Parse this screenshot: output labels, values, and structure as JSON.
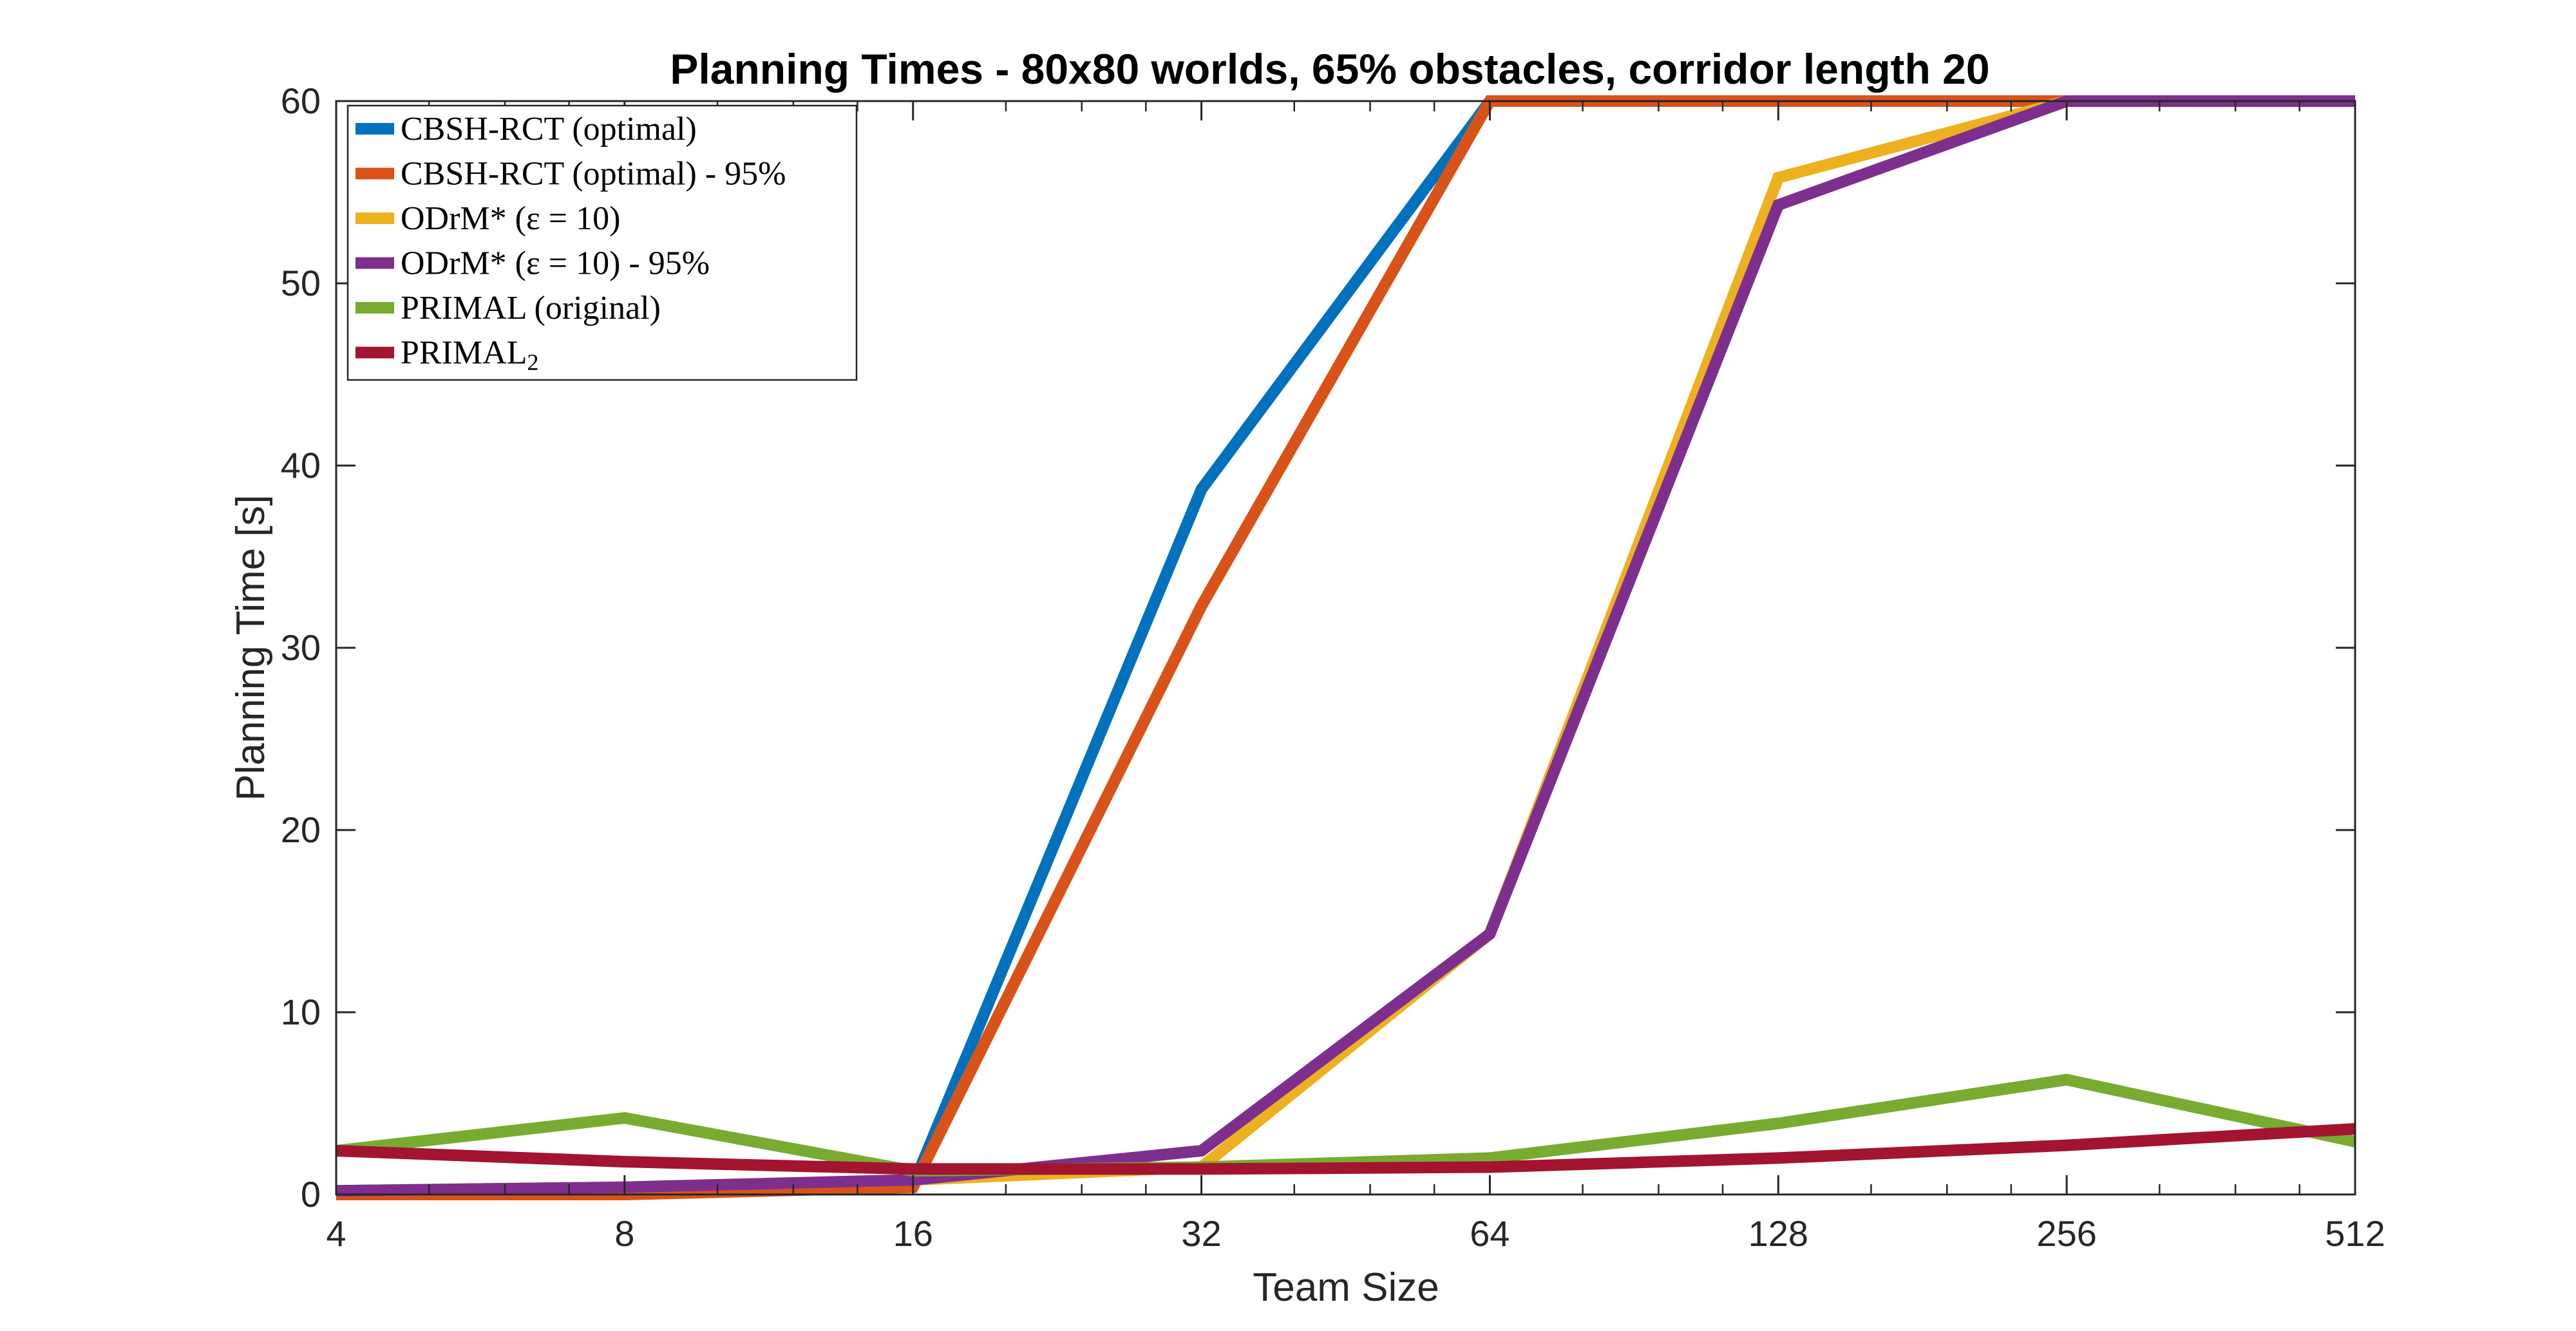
{
  "chart_data": {
    "type": "line",
    "title": "Planning Times - 80x80 worlds, 65% obstacles, corridor length 20",
    "xlabel": "Team Size",
    "ylabel": "Planning Time [s]",
    "x_scale": "log2",
    "x": [
      4,
      8,
      16,
      32,
      64,
      128,
      256,
      512
    ],
    "x_ticks": [
      "4",
      "8",
      "16",
      "32",
      "64",
      "128",
      "256",
      "512"
    ],
    "ylim": [
      0,
      60
    ],
    "y_ticks": [
      "0",
      "10",
      "20",
      "30",
      "40",
      "50",
      "60"
    ],
    "grid": false,
    "legend_position": "top-left",
    "series": [
      {
        "name": "CBSH-RCT (optimal)",
        "color": "#0072BD",
        "values": [
          0.1,
          0.1,
          0.5,
          38.7,
          60,
          60,
          60,
          60
        ]
      },
      {
        "name": "CBSH-RCT (optimal) - 95%",
        "color": "#D95319",
        "values": [
          0.0,
          0.0,
          0.4,
          32.3,
          60,
          60,
          60,
          60
        ]
      },
      {
        "name": "ODrM* (ε = 10)",
        "color": "#EDB120",
        "values": [
          0.2,
          0.4,
          0.8,
          1.5,
          14.3,
          55.8,
          60,
          60
        ]
      },
      {
        "name": "ODrM* (ε = 10) - 95%",
        "color": "#7E2F8E",
        "values": [
          0.2,
          0.4,
          0.8,
          2.4,
          14.3,
          54.3,
          60,
          60
        ]
      },
      {
        "name": "PRIMAL (original)",
        "color": "#77AC30",
        "values": [
          2.4,
          4.2,
          1.3,
          1.5,
          2.0,
          3.9,
          6.3,
          2.9
        ]
      },
      {
        "name": "PRIMAL",
        "name_subscript": "2",
        "color": "#A2142F",
        "values": [
          2.4,
          1.8,
          1.4,
          1.4,
          1.5,
          2.0,
          2.7,
          3.6
        ]
      }
    ]
  }
}
